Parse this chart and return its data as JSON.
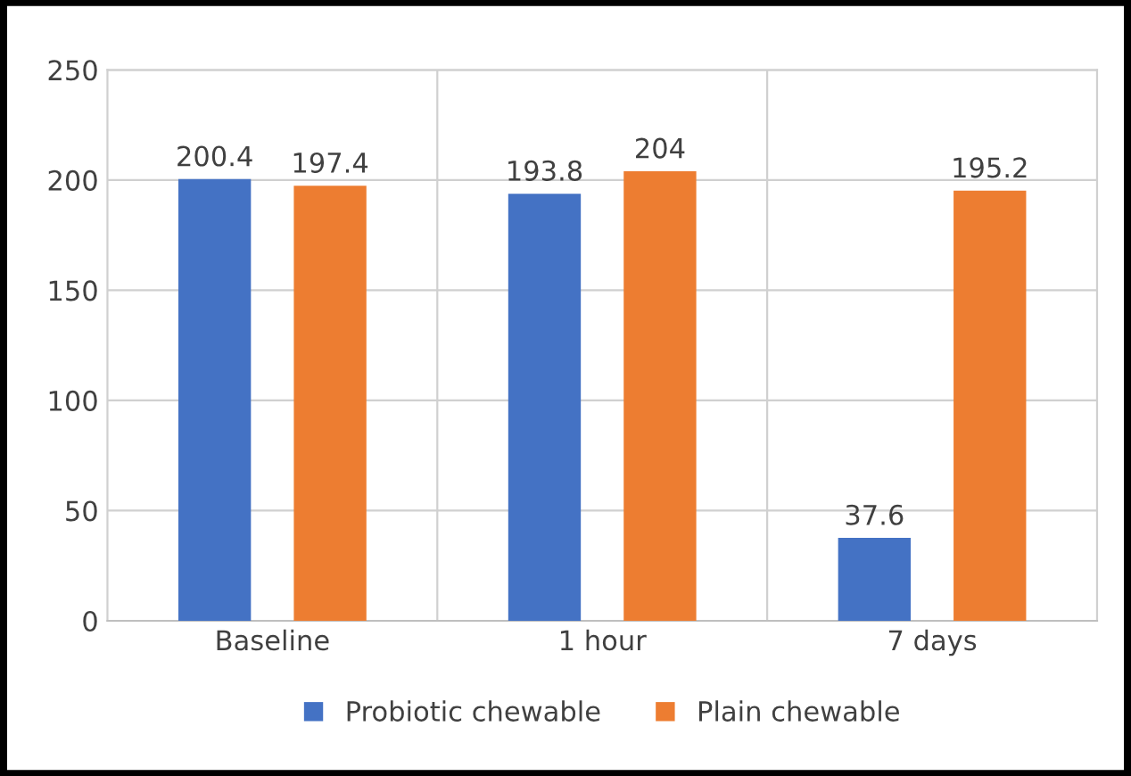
{
  "chart_data": {
    "type": "bar",
    "categories": [
      "Baseline",
      "1 hour",
      "7 days"
    ],
    "series": [
      {
        "name": "Probiotic chewable",
        "color": "#4472c4",
        "values": [
          200.4,
          193.8,
          37.6
        ]
      },
      {
        "name": "Plain chewable",
        "color": "#ed7d31",
        "values": [
          197.4,
          204,
          195.2
        ]
      }
    ],
    "ylim": [
      0,
      250
    ],
    "yticks": [
      0,
      50,
      100,
      150,
      200,
      250
    ],
    "grid": true,
    "legend": "bottom",
    "data_labels": true
  }
}
